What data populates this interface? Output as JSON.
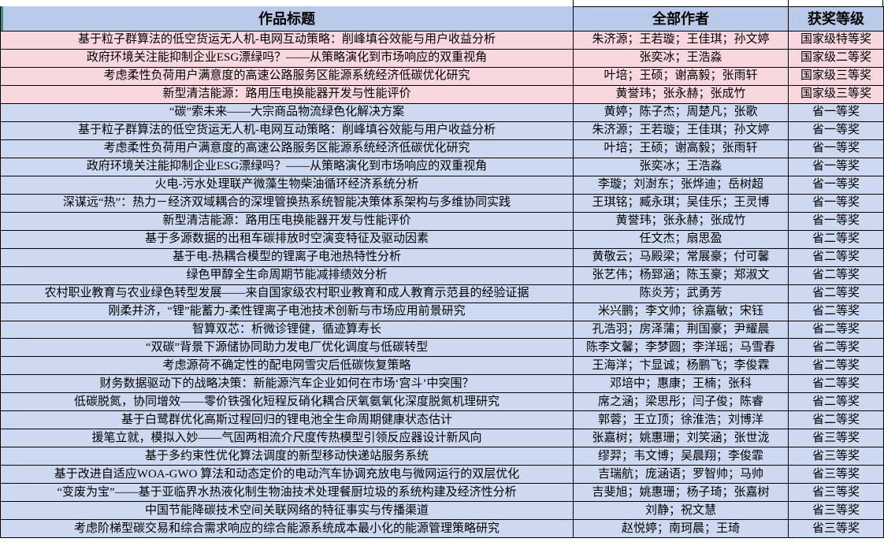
{
  "colors": {
    "header_bg": "#b9c9e9",
    "national_row_bg": "#f8d8de",
    "provincial_row_bg": "#ccd9f0",
    "border": "#000000",
    "marker_green": "#1e9e77",
    "text": "#000000"
  },
  "table": {
    "columns": [
      {
        "label": "作品标题"
      },
      {
        "label": "全部作者"
      },
      {
        "label": "获奖等级"
      }
    ],
    "rows": [
      {
        "title": "基于粒子群算法的低空货运无人机-电网互动策略：削峰填谷效能与用户收益分析",
        "authors": "朱济源；王若璇；王佳琪；孙文婷",
        "award": "国家级特等奖"
      },
      {
        "title": "政府环境关注能抑制企业ESG漂绿吗？——从策略演化到市场响应的双重视角",
        "authors": "张奕冰；王浩淼",
        "award": "国家级二等奖"
      },
      {
        "title": "考虑柔性负荷用户满意度的高速公路服务区能源系统经济低碳优化研究",
        "authors": "叶培；王硕；谢高毅；张雨轩",
        "award": "国家级三等奖"
      },
      {
        "title": "新型清洁能源：路用压电换能器开发与性能评价",
        "authors": "黄誉玮；张永赫；张成竹",
        "award": "国家级三等奖"
      },
      {
        "title": "“碳”索未来——大宗商品物流绿色化解决方案",
        "authors": "黄婷；陈子杰；周楚凡；张歌",
        "award": "省一等奖"
      },
      {
        "title": "基于粒子群算法的低空货运无人机-电网互动策略：削峰填谷效能与用户收益分析",
        "authors": "朱济源；王若璇；王佳琪；孙文婷",
        "award": "省一等奖"
      },
      {
        "title": "考虑柔性负荷用户满意度的高速公路服务区能源系统经济低碳优化研究",
        "authors": "叶培；王硕；谢高毅；张雨轩",
        "award": "省一等奖"
      },
      {
        "title": "政府环境关注能抑制企业ESG漂绿吗？——从策略演化到市场响应的双重视角",
        "authors": "张奕冰；王浩淼",
        "award": "省一等奖"
      },
      {
        "title": "火电-污水处理联产微藻生物柴油循环经济系统分析",
        "authors": "李璇；刘澍东；张烨迪；岳树超",
        "award": "省一等奖"
      },
      {
        "title": "深谋远“热”：热力－经济双域耦合的深埋管换热系统智能决策体系架构与多维协同实践",
        "authors": "王琪铭；臧永琪；吴佳乐；王灵博",
        "award": "省一等奖"
      },
      {
        "title": "新型清洁能源：路用压电换能器开发与性能评价",
        "authors": "黄誉玮；张永赫；张成竹",
        "award": "省一等奖"
      },
      {
        "title": "基于多源数据的出租车碳排放时空演变特征及驱动因素",
        "authors": "任文杰；扇思盈",
        "award": "省二等奖"
      },
      {
        "title": "基于电-热耦合模型的锂离子电池热特性分析",
        "authors": "黄敬云；马殿梁；常展豪；付可馨",
        "award": "省二等奖"
      },
      {
        "title": "绿色甲醇全生命周期节能减排绩效分析",
        "authors": "张艺伟；杨郅涵；陈玉豪；郑淑文",
        "award": "省二等奖"
      },
      {
        "title": "农村职业教育与农业绿色转型发展——来自国家级农村职业教育和成人教育示范县的经验证据",
        "authors": "陈炎芳；武勇芳",
        "award": "省二等奖"
      },
      {
        "title": "刚柔并济，“锂”能蓄力-柔性锂离子电池技术创新与市场应用前景研究",
        "authors": "米兴鹏；李文帅；徐嘉敏；宋钰",
        "award": "省二等奖"
      },
      {
        "title": "智算双芯：析微诊锂健，循迹算寿长",
        "authors": "孔浩羽；房泽蒲；荆国豪；尹耀晨",
        "award": "省二等奖"
      },
      {
        "title": "“双碳”背景下源储协同助力发电厂优化调度与低碳转型",
        "authors": "陈李文馨；李梦圆；李洋瑶；马雪春",
        "award": "省二等奖"
      },
      {
        "title": "考虑源荷不确定性的配电网雪灾后低碳恢复策略",
        "authors": "王海洋；卞显诚；杨鹏飞；李俊霖",
        "award": "省二等奖"
      },
      {
        "title": "财务数据驱动下的战略决策：新能源汽车企业如何在市场‘宫斗’中突围？",
        "authors": "邓培中；惠康；王楠；张科",
        "award": "省二等奖"
      },
      {
        "title": "低碳脱氮，协同增效——零价铁强化短程反硝化耦合厌氧氨氧化深度脱氮机理研究",
        "authors": "席之涵；梁思彤；闫子俊；陈睿",
        "award": "省二等奖"
      },
      {
        "title": "基于白鹭群优化高斯过程回归的锂电池全生命周期健康状态估计",
        "authors": "郭蓉；王立顶；徐淮浩；刘博洋",
        "award": "省二等奖"
      },
      {
        "title": "援笔立就，模拟入妙——气固两相流介尺度传热模型引领反应器设计新风向",
        "authors": "张嘉树；姚惠珊；刘笑涵；张世泷",
        "award": "省三等奖"
      },
      {
        "title": "基于多约束性优化算法调度的新型移动快递站服务系统",
        "authors": "缪羿；韦文博；吴晨翔；李俊霏",
        "award": "省三等奖"
      },
      {
        "title": "基于改进自适应WOA-GWO 算法和动态定价的电动汽车协调充放电与微网运行的双层优化",
        "authors": "吉瑞航；庞涵语；罗智帅；马帅",
        "award": "省三等奖"
      },
      {
        "title": "“变废为宝”——基于亚临界水热液化制生物油技术处理餐厨垃圾的系统构建及经济性分析",
        "authors": "吉斐旭；姚惠珊；杨子琦；张嘉树",
        "award": "省三等奖"
      },
      {
        "title": "中国节能降碳技术空间关联网络的特征事实与传播渠道",
        "authors": "刘静；祝文慧",
        "award": "省三等奖"
      },
      {
        "title": "考虑阶梯型碳交易和综合需求响应的综合能源系统成本最小化的能源管理策略研究",
        "authors": "赵悦婷；南珂晨；王琦",
        "award": "省三等奖"
      }
    ]
  }
}
